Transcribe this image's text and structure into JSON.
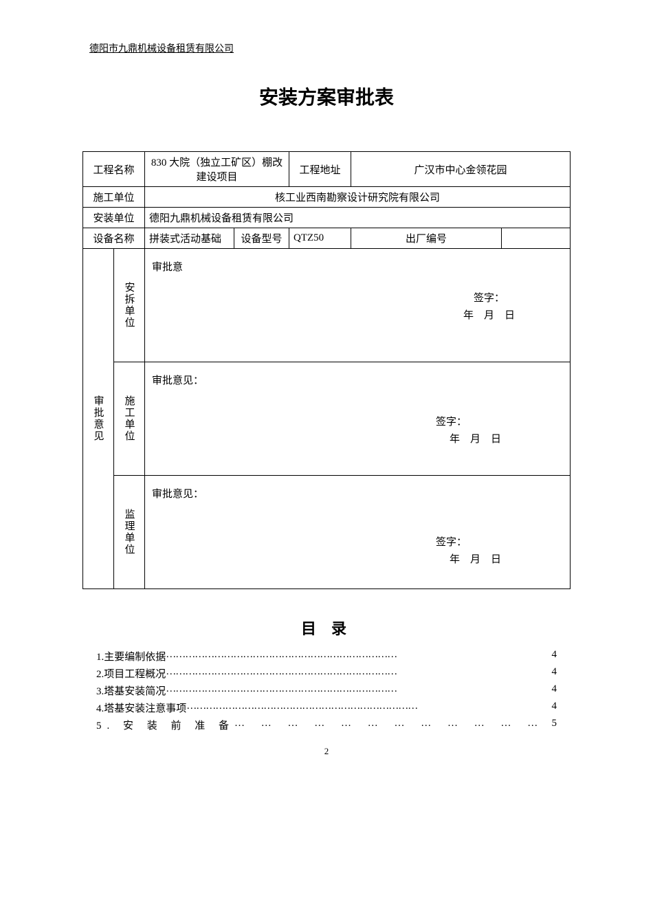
{
  "header": {
    "company": "德阳市九鼎机械设备租赁有限公司"
  },
  "title": "安装方案审批表",
  "table": {
    "labels": {
      "project_name": "工程名称",
      "project_address": "工程地址",
      "construction_unit": "施工单位",
      "installation_unit": "安装单位",
      "equipment_name": "设备名称",
      "equipment_model": "设备型号",
      "factory_number": "出厂编号",
      "approval_opinion": "审批意见",
      "dismantle_unit": "安拆单位",
      "construction_unit_v": "施工单位",
      "supervision_unit": "监理单位"
    },
    "values": {
      "project_name": "830 大院（独立工矿区）棚改建设项目",
      "project_address": "广汉市中心金领花园",
      "construction_unit": "核工业西南勘察设计研究院有限公司",
      "installation_unit": "德阳九鼎机械设备租赁有限公司",
      "equipment_name": "拼装式活动基础",
      "equipment_model": "QTZ50",
      "factory_number": ""
    },
    "opinion": {
      "label": "审批意",
      "label_colon": "审批意见：",
      "signature": "签字：",
      "date": "年　月　日"
    }
  },
  "toc": {
    "title": "目 录",
    "items": [
      {
        "text": "1.主要编制依据",
        "page": "4",
        "spaced": false
      },
      {
        "text": "2.项目工程概况",
        "page": "4",
        "spaced": false
      },
      {
        "text": "3.塔基安装简况",
        "page": "4",
        "spaced": false
      },
      {
        "text": "4.塔基安装注意事项 ",
        "page": "4",
        "spaced": false
      },
      {
        "text": "5. 安 装 前 准 备 ",
        "page": " 5",
        "spaced": true
      }
    ]
  },
  "page_number": "2"
}
